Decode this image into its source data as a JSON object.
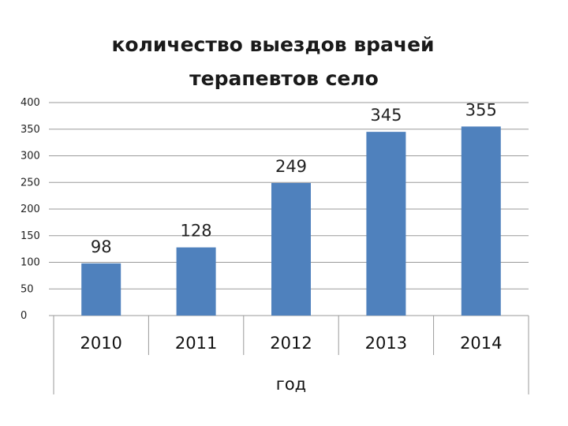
{
  "chart_data": {
    "type": "bar",
    "title_line1": "количество выездов врачей",
    "title_line2": "терапевтов  село",
    "categories": [
      "2010",
      "2011",
      "2012",
      "2013",
      "2014"
    ],
    "values": [
      98,
      128,
      249,
      345,
      355
    ],
    "data_labels": [
      "98",
      "128",
      "249",
      "345",
      "355"
    ],
    "xlabel": "год",
    "ylabel": "",
    "ylim": [
      0,
      400
    ],
    "yticks": [
      0,
      50,
      100,
      150,
      200,
      250,
      300,
      350,
      400
    ],
    "grid": true,
    "legend": "none",
    "bar_color": "#4F81BD"
  }
}
